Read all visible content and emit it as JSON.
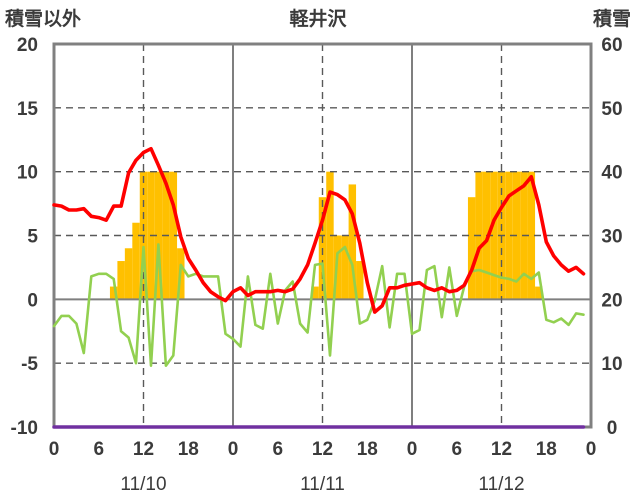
{
  "chart_data": {
    "type": "line",
    "title": "軽井沢",
    "days": [
      "11/10",
      "11/11",
      "11/12"
    ],
    "hours": [
      0,
      1,
      2,
      3,
      4,
      5,
      6,
      7,
      8,
      9,
      10,
      11,
      12,
      13,
      14,
      15,
      16,
      17,
      18,
      19,
      20,
      21,
      22,
      23
    ],
    "x_tick_labels": [
      "0",
      "6",
      "12",
      "18",
      "0",
      "6",
      "12",
      "18",
      "0",
      "6",
      "12",
      "18",
      "0"
    ],
    "y_left": {
      "label": "積雪以外",
      "range": [
        -10,
        20
      ],
      "tick_labels": [
        "20",
        "15",
        "10",
        "5",
        "0",
        "-5",
        "-10"
      ]
    },
    "y_right": {
      "label": "積雪",
      "range": [
        0,
        60
      ],
      "tick_labels": [
        "60",
        "50",
        "40",
        "30",
        "20",
        "10",
        "0"
      ]
    },
    "grid": true,
    "left_axis_bars": [
      {
        "color": "#ffc000",
        "values": [
          [
            0,
            0,
            0,
            0,
            0,
            0,
            0,
            0,
            1,
            3,
            4,
            6,
            10,
            10,
            10,
            10,
            10,
            4,
            0,
            0,
            0,
            0,
            0,
            0
          ],
          [
            0,
            0,
            0,
            0,
            0,
            0,
            0,
            0,
            0,
            0,
            0,
            1,
            8,
            10,
            5,
            5,
            9,
            3,
            0,
            0,
            0,
            0,
            0,
            0
          ],
          [
            0,
            0,
            0,
            0,
            0,
            0,
            0,
            0,
            8,
            10,
            10,
            10,
            10,
            10,
            10,
            10,
            10,
            1,
            0,
            0,
            0,
            0,
            0,
            0
          ]
        ]
      }
    ],
    "left_axis_lines": [
      {
        "color": "#92d050",
        "values": [
          [
            -2.1,
            -1.3,
            -1.3,
            -1.9,
            -4.2,
            1.8,
            2.0,
            2.0,
            1.6,
            -2.5,
            -3.0,
            -5.0,
            4.1,
            -5.2,
            4.3,
            -5.2,
            -4.4,
            2.7,
            1.8,
            2.0,
            1.8,
            1.8,
            1.8,
            -2.7
          ],
          [
            -3.1,
            -3.7,
            1.8,
            -2.0,
            -2.3,
            2.0,
            -1.9,
            0.7,
            1.4,
            -1.9,
            -2.6,
            2.7,
            2.8,
            -4.4,
            3.6,
            4.1,
            2.7,
            -1.9,
            -1.6,
            -0.1,
            2.6,
            -2.2,
            2.0,
            2.0
          ],
          [
            -2.7,
            -2.4,
            2.3,
            2.6,
            -1.4,
            2.5,
            -1.3,
            1.0,
            2.2,
            2.3,
            2.1,
            1.9,
            1.7,
            1.6,
            1.4,
            2.0,
            1.6,
            2.1,
            -1.6,
            -1.8,
            -1.5,
            -2.0,
            -1.1,
            -1.2
          ]
        ]
      },
      {
        "color": "#ff0000",
        "values": [
          [
            7.4,
            7.3,
            7.0,
            7.0,
            7.1,
            6.5,
            6.4,
            6.2,
            7.3,
            7.3,
            9.9,
            10.9,
            11.5,
            11.8,
            10.5,
            9.1,
            7.4,
            4.9,
            3.2,
            2.3,
            1.3,
            0.6,
            0.2,
            -0.1
          ],
          [
            0.6,
            0.9,
            0.3,
            0.6,
            0.6,
            0.6,
            0.7,
            0.6,
            0.8,
            1.6,
            2.7,
            4.4,
            6.2,
            8.4,
            8.2,
            7.8,
            6.7,
            4.4,
            1.3,
            -1.0,
            -0.5,
            0.9,
            0.9,
            1.1
          ],
          [
            1.2,
            1.3,
            0.9,
            0.7,
            0.9,
            0.6,
            0.7,
            1.1,
            2.3,
            4.0,
            4.6,
            6.2,
            7.2,
            8.1,
            8.5,
            8.9,
            9.6,
            7.4,
            4.5,
            3.4,
            2.7,
            2.2,
            2.5,
            2.0
          ]
        ]
      }
    ],
    "right_axis_lines": [
      {
        "color": "#7030a0",
        "values": [
          [
            0,
            0,
            0,
            0,
            0,
            0,
            0,
            0,
            0,
            0,
            0,
            0,
            0,
            0,
            0,
            0,
            0,
            0,
            0,
            0,
            0,
            0,
            0,
            0
          ],
          [
            0,
            0,
            0,
            0,
            0,
            0,
            0,
            0,
            0,
            0,
            0,
            0,
            0,
            0,
            0,
            0,
            0,
            0,
            0,
            0,
            0,
            0,
            0,
            0
          ],
          [
            0,
            0,
            0,
            0,
            0,
            0,
            0,
            0,
            0,
            0,
            0,
            0,
            0,
            0,
            0,
            0,
            0,
            0,
            0,
            0,
            0,
            0,
            0,
            0
          ]
        ]
      }
    ]
  }
}
